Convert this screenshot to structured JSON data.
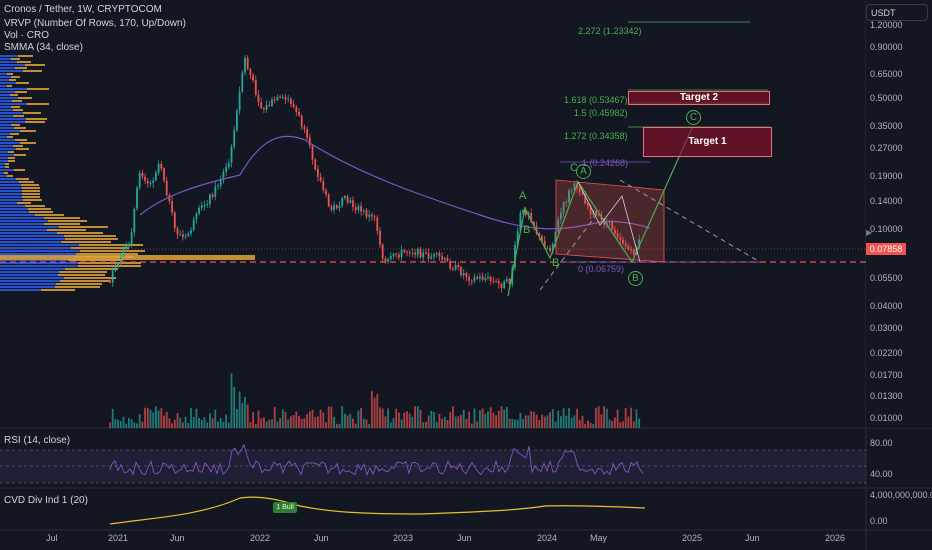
{
  "legend": {
    "symbol": "Cronos / Tether, 1W, CRYPTOCOM",
    "vrvp": "VRVP (Number Of Rows, 170, Up/Down)",
    "vol": "Vol · CRO",
    "smma": "SMMA (34, close)",
    "rsi": "RSI (14, close)",
    "cvd": "CVD Div Ind 1 (20)"
  },
  "currency": "USDT",
  "fullscreen_icon": "expand-arrow-icon",
  "colors": {
    "up": "#26a69a",
    "down": "#ef5350",
    "smma": "#7e57c2",
    "fib": "#4caf50",
    "target": "#880e28",
    "vrvp_up": "#2962ff",
    "vrvp_down": "#e0a33a",
    "cvd": "#e6c12a"
  },
  "price_axis": [
    "1.20000",
    "0.90000",
    "0.65000",
    "0.50000",
    "0.35000",
    "0.27000",
    "0.19000",
    "0.14000",
    "0.10000",
    "0.05500",
    "0.04000",
    "0.03000",
    "0.02200",
    "0.01700",
    "0.01300",
    "0.01000"
  ],
  "current_price": "0.07858",
  "rsi_axis": [
    "80.00",
    "40.00"
  ],
  "cvd_axis": [
    "4,000,000,000.00",
    "0.00"
  ],
  "time_axis": [
    "Jul",
    "2021",
    "Jun",
    "2022",
    "Jun",
    "2023",
    "Jun",
    "2024",
    "May",
    "2025",
    "Jun",
    "2026"
  ],
  "fib_levels": [
    {
      "label": "2.272 (1.23342)",
      "ratio": 2.272,
      "price": 1.23342
    },
    {
      "label": "1.618 (0.53467)",
      "ratio": 1.618,
      "price": 0.53467
    },
    {
      "label": "1.5 (0.45982)",
      "ratio": 1.5,
      "price": 0.45982
    },
    {
      "label": "1.272 (0.34358)",
      "ratio": 1.272,
      "price": 0.34358
    },
    {
      "label": "1 (0.24268)",
      "ratio": 1,
      "price": 0.24268
    },
    {
      "label": "0 (0.06759)",
      "ratio": 0,
      "price": 0.06759
    }
  ],
  "targets": [
    "Target 2",
    "Target 1"
  ],
  "wave_labels": [
    "A",
    "C",
    "B",
    "B"
  ],
  "circle_labels": [
    "A",
    "C",
    "B"
  ],
  "cvd_badge": "1 Bull"
}
